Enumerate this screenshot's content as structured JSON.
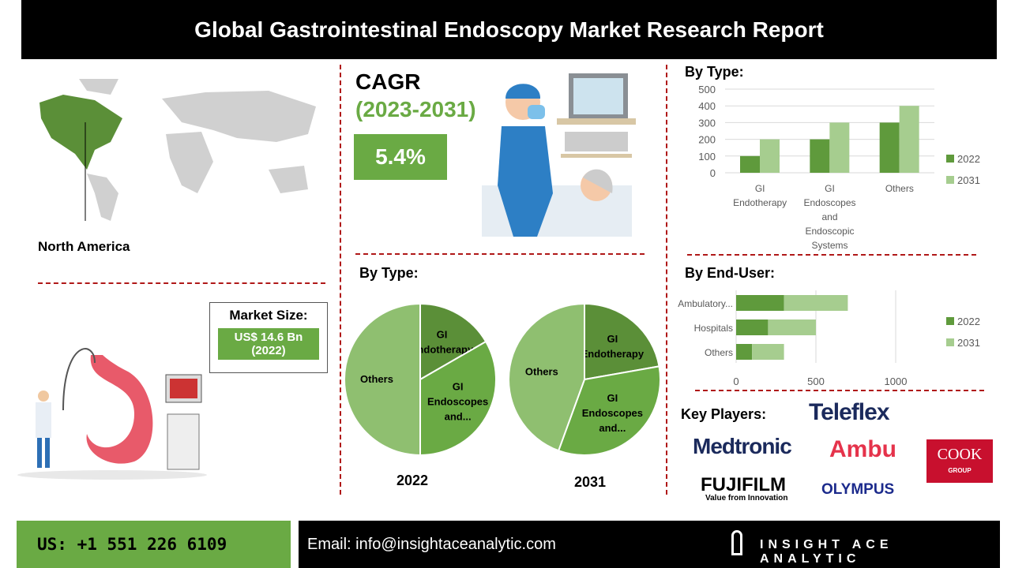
{
  "title": "Global Gastrointestinal Endoscopy Market Research Report",
  "region": {
    "label": "North America"
  },
  "market_size": {
    "label": "Market Size:",
    "value": "US$ 14.6 Bn",
    "year": "(2022)"
  },
  "cagr": {
    "label": "CAGR",
    "period": "(2023-2031)",
    "value": "5.4%"
  },
  "colors": {
    "dark_green": "#5b8f38",
    "mid_green": "#6aaa44",
    "light_green": "#a6cd8f",
    "pie_light": "#8fbf70",
    "divider": "#b01818"
  },
  "chart_data": [
    {
      "type": "pie",
      "title": "By Type:",
      "caption": "2022",
      "slices": [
        {
          "label": "GI Endotherapy",
          "value": 100
        },
        {
          "label": "GI Endoscopes and...",
          "value": 200
        },
        {
          "label": "Others",
          "value": 300
        }
      ]
    },
    {
      "type": "pie",
      "caption": "2031",
      "slices": [
        {
          "label": "GI Endotherapy",
          "value": 200
        },
        {
          "label": "GI Endoscopes and...",
          "value": 300
        },
        {
          "label": "Others",
          "value": 400
        }
      ]
    },
    {
      "type": "bar",
      "title": "By Type:",
      "categories": [
        "GI Endotherapy",
        "GI Endoscopes and Endoscopic Systems",
        "Others"
      ],
      "series": [
        {
          "name": "2022",
          "values": [
            100,
            200,
            300
          ]
        },
        {
          "name": "2031",
          "values": [
            200,
            300,
            400
          ]
        }
      ],
      "ylim": [
        0,
        500
      ],
      "yticks": [
        "0",
        "100",
        "200",
        "300",
        "400",
        "500"
      ],
      "grid": true,
      "legend": "right"
    },
    {
      "type": "bar",
      "orientation": "horizontal",
      "stacked": true,
      "title": "By End-User:",
      "categories": [
        "Ambulatory...",
        "Hospitals",
        "Others"
      ],
      "series": [
        {
          "name": "2022",
          "values": [
            300,
            200,
            100
          ]
        },
        {
          "name": "2031",
          "values": [
            400,
            300,
            200
          ]
        }
      ],
      "xlim": [
        0,
        1000
      ],
      "xticks": [
        "0",
        "500",
        "1000"
      ],
      "grid": true,
      "legend": "right"
    }
  ],
  "key_players": {
    "label": "Key Players:",
    "logos": [
      "Teleflex",
      "Medtronic",
      "Ambu",
      "COOK",
      "GROUP",
      "FUJIFILM",
      "Value from Innovation",
      "OLYMPUS"
    ]
  },
  "footer": {
    "phone": "US: +1 551 226 6109",
    "email": "Email: info@insightaceanalytic.com",
    "brand": "INSIGHT ACE ANALYTIC"
  }
}
